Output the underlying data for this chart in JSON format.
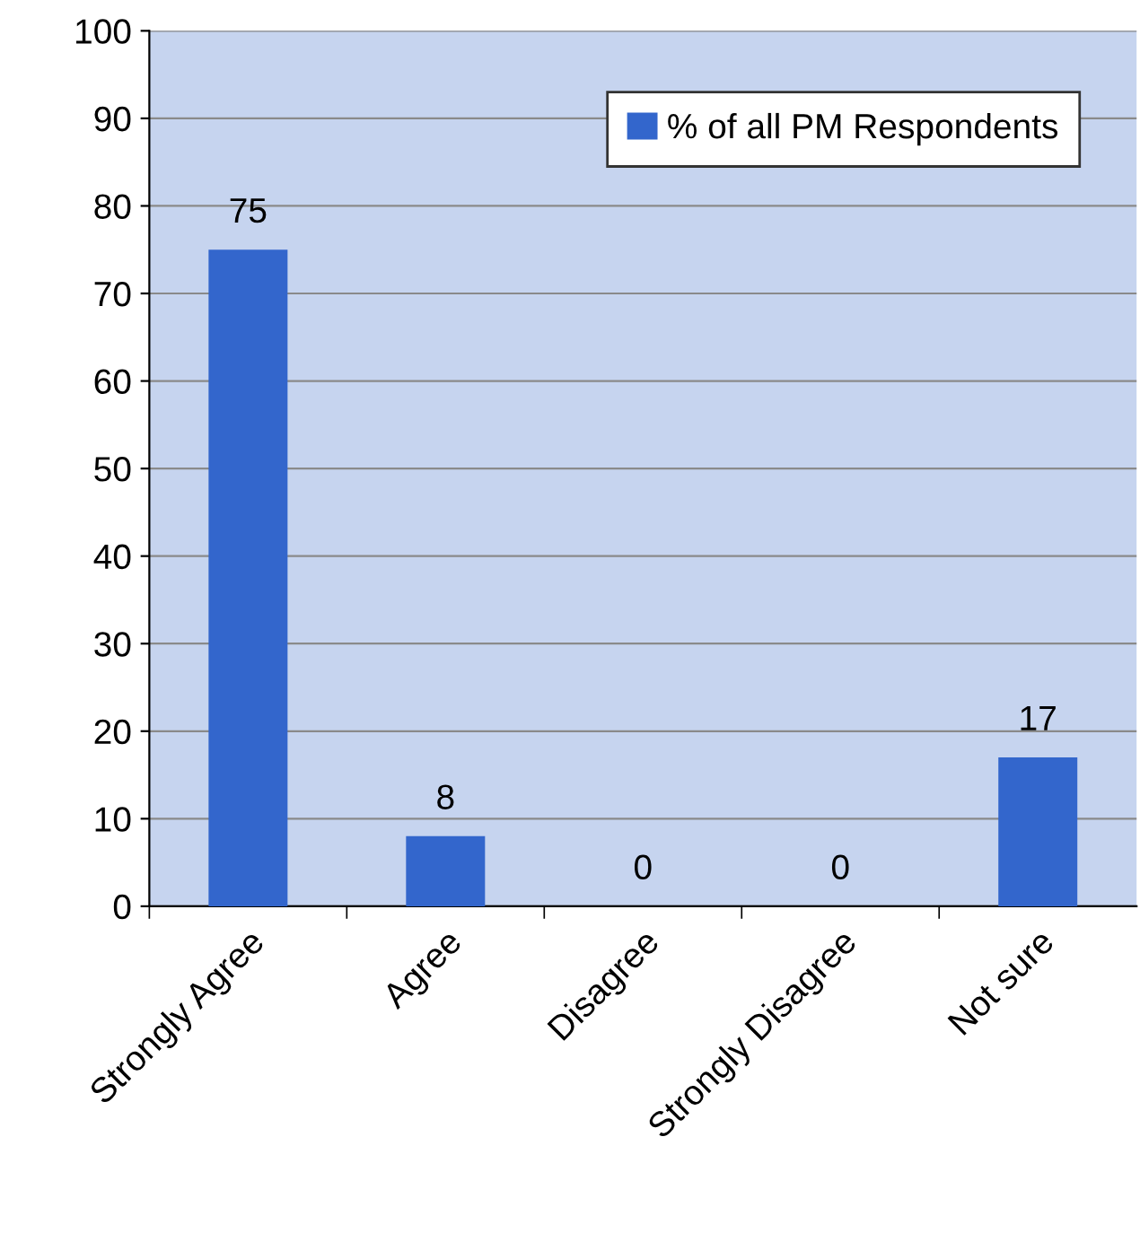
{
  "chart_data": {
    "type": "bar",
    "categories": [
      "Strongly Agree",
      "Agree",
      "Disagree",
      "Strongly Disagree",
      "Not sure"
    ],
    "series": [
      {
        "name": "% of all PM Respondents",
        "color": "#3366cc",
        "values": [
          75,
          8,
          0,
          0,
          17
        ]
      }
    ],
    "ylim": [
      0,
      100
    ],
    "yticks": [
      0,
      10,
      20,
      30,
      40,
      50,
      60,
      70,
      80,
      90,
      100
    ],
    "grid": "y",
    "legend": "top right",
    "data_labels": true
  }
}
